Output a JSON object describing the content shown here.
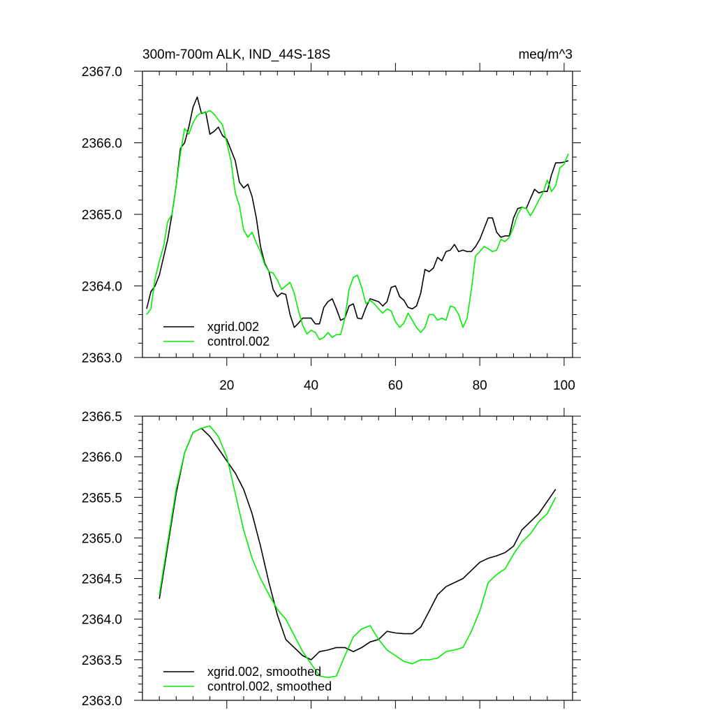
{
  "chart_data": [
    {
      "type": "line",
      "title_left": "300m-700m ALK, IND_44S-18S",
      "title_right": "meq/m^3",
      "xlim": [
        0,
        102
      ],
      "ylim": [
        2363.0,
        2367.0
      ],
      "xticks": [
        20,
        40,
        60,
        80,
        100
      ],
      "xticklabels": [
        "20",
        "40",
        "60",
        "80",
        "100"
      ],
      "yticks": [
        2363.0,
        2364.0,
        2365.0,
        2366.0,
        2367.0
      ],
      "yticklabels": [
        "2363.0",
        "2364.0",
        "2365.0",
        "2366.0",
        "2367.0"
      ],
      "legend_position": "bottom-left",
      "series": [
        {
          "name": "xgrid.002",
          "color": "#000000",
          "x": [
            1,
            2,
            3,
            4,
            5,
            6,
            7,
            8,
            9,
            10,
            11,
            12,
            13,
            14,
            15,
            16,
            17,
            18,
            19,
            20,
            21,
            22,
            23,
            24,
            25,
            26,
            27,
            28,
            29,
            30,
            31,
            32,
            33,
            34,
            35,
            36,
            37,
            38,
            39,
            40,
            41,
            42,
            43,
            44,
            45,
            46,
            47,
            48,
            49,
            50,
            51,
            52,
            53,
            54,
            55,
            56,
            57,
            58,
            59,
            60,
            61,
            62,
            63,
            64,
            65,
            66,
            67,
            68,
            69,
            70,
            71,
            72,
            73,
            74,
            75,
            76,
            77,
            78,
            79,
            80,
            81,
            82,
            83,
            84,
            85,
            86,
            87,
            88,
            89,
            90,
            91,
            92,
            93,
            94,
            95,
            96,
            97,
            98,
            99,
            100,
            101
          ],
          "values": [
            2363.68,
            2363.92,
            2364.0,
            2364.15,
            2364.4,
            2364.65,
            2365.0,
            2365.4,
            2365.92,
            2366.0,
            2366.22,
            2366.5,
            2366.64,
            2366.41,
            2366.43,
            2366.12,
            2366.16,
            2366.22,
            2366.1,
            2366.05,
            2365.9,
            2365.75,
            2365.45,
            2365.37,
            2365.42,
            2365.25,
            2364.95,
            2364.55,
            2364.32,
            2364.2,
            2363.95,
            2363.85,
            2363.9,
            2363.88,
            2363.6,
            2363.42,
            2363.48,
            2363.55,
            2363.55,
            2363.55,
            2363.47,
            2363.47,
            2363.7,
            2363.78,
            2363.82,
            2363.68,
            2363.52,
            2363.55,
            2363.72,
            2363.75,
            2363.55,
            2363.54,
            2363.7,
            2363.82,
            2363.8,
            2363.78,
            2363.72,
            2363.78,
            2363.98,
            2364.0,
            2363.85,
            2363.8,
            2363.7,
            2363.68,
            2363.72,
            2363.9,
            2364.23,
            2364.2,
            2364.25,
            2364.4,
            2364.35,
            2364.48,
            2364.5,
            2364.58,
            2364.48,
            2364.5,
            2364.48,
            2364.48,
            2364.55,
            2364.65,
            2364.8,
            2364.95,
            2364.95,
            2364.75,
            2364.68,
            2364.7,
            2364.7,
            2364.95,
            2365.08,
            2365.1,
            2365.08,
            2365.22,
            2365.35,
            2365.3,
            2365.32,
            2365.32,
            2365.55,
            2365.72,
            2365.72,
            2365.73,
            2365.75
          ]
        },
        {
          "name": "control.002",
          "color": "#00ee00",
          "x": [
            1,
            2,
            3,
            4,
            5,
            6,
            7,
            8,
            9,
            10,
            11,
            12,
            13,
            14,
            15,
            16,
            17,
            18,
            19,
            20,
            21,
            22,
            23,
            24,
            25,
            26,
            27,
            28,
            29,
            30,
            31,
            32,
            33,
            34,
            35,
            36,
            37,
            38,
            39,
            40,
            41,
            42,
            43,
            44,
            45,
            46,
            47,
            48,
            49,
            50,
            51,
            52,
            53,
            54,
            55,
            56,
            57,
            58,
            59,
            60,
            61,
            62,
            63,
            64,
            65,
            66,
            67,
            68,
            69,
            70,
            71,
            72,
            73,
            74,
            75,
            76,
            77,
            78,
            79,
            80,
            81,
            82,
            83,
            84,
            85,
            86,
            87,
            88,
            89,
            90,
            91,
            92,
            93,
            94,
            95,
            96,
            97,
            98,
            99,
            100,
            101
          ],
          "values": [
            2363.6,
            2363.68,
            2364.1,
            2364.35,
            2364.55,
            2364.9,
            2365.0,
            2365.4,
            2365.85,
            2366.2,
            2366.12,
            2366.28,
            2366.38,
            2366.42,
            2366.42,
            2366.45,
            2366.4,
            2366.32,
            2366.25,
            2366.0,
            2365.75,
            2365.3,
            2365.12,
            2364.78,
            2364.68,
            2364.75,
            2364.6,
            2364.48,
            2364.3,
            2364.2,
            2364.18,
            2364.08,
            2363.95,
            2364.0,
            2364.05,
            2363.9,
            2363.65,
            2363.45,
            2363.33,
            2363.38,
            2363.35,
            2363.25,
            2363.28,
            2363.35,
            2363.28,
            2363.32,
            2363.32,
            2363.55,
            2363.95,
            2364.12,
            2364.15,
            2363.98,
            2363.75,
            2363.8,
            2363.75,
            2363.68,
            2363.62,
            2363.68,
            2363.65,
            2363.5,
            2363.42,
            2363.48,
            2363.62,
            2363.52,
            2363.42,
            2363.35,
            2363.42,
            2363.6,
            2363.6,
            2363.52,
            2363.55,
            2363.52,
            2363.72,
            2363.7,
            2363.6,
            2363.42,
            2363.55,
            2363.95,
            2364.42,
            2364.48,
            2364.55,
            2364.52,
            2364.48,
            2364.5,
            2364.65,
            2364.62,
            2364.68,
            2364.82,
            2365.0,
            2365.1,
            2365.08,
            2364.98,
            2365.08,
            2365.2,
            2365.3,
            2365.48,
            2365.32,
            2365.4,
            2365.65,
            2365.7,
            2365.85
          ]
        }
      ]
    },
    {
      "type": "line",
      "xlim": [
        0,
        102
      ],
      "ylim": [
        2363.0,
        2366.5
      ],
      "xticks": [
        20,
        40,
        60,
        80,
        100
      ],
      "yticks": [
        2363.0,
        2363.5,
        2364.0,
        2364.5,
        2365.0,
        2365.5,
        2366.0,
        2366.5
      ],
      "yticklabels": [
        "2363.0",
        "2363.5",
        "2364.0",
        "2364.5",
        "2365.0",
        "2365.5",
        "2366.0",
        "2366.5"
      ],
      "legend_position": "bottom-left",
      "series": [
        {
          "name": "xgrid.002, smoothed",
          "color": "#000000",
          "x": [
            4,
            6,
            8,
            10,
            12,
            14,
            16,
            18,
            20,
            22,
            24,
            26,
            28,
            30,
            32,
            34,
            36,
            38,
            40,
            42,
            44,
            46,
            48,
            50,
            52,
            54,
            56,
            58,
            60,
            62,
            64,
            66,
            68,
            70,
            72,
            74,
            76,
            78,
            80,
            82,
            84,
            86,
            88,
            90,
            92,
            94,
            96,
            98
          ],
          "values": [
            2364.25,
            2364.9,
            2365.55,
            2366.05,
            2366.3,
            2366.35,
            2366.25,
            2366.1,
            2365.95,
            2365.8,
            2365.6,
            2365.3,
            2364.9,
            2364.45,
            2364.05,
            2363.75,
            2363.65,
            2363.55,
            2363.5,
            2363.6,
            2363.62,
            2363.65,
            2363.65,
            2363.6,
            2363.65,
            2363.72,
            2363.75,
            2363.85,
            2363.83,
            2363.82,
            2363.82,
            2363.9,
            2364.1,
            2364.3,
            2364.4,
            2364.45,
            2364.5,
            2364.6,
            2364.7,
            2364.75,
            2364.78,
            2364.82,
            2364.9,
            2365.1,
            2365.2,
            2365.3,
            2365.45,
            2365.6
          ]
        },
        {
          "name": "control.002, smoothed",
          "color": "#00ee00",
          "x": [
            4,
            6,
            8,
            10,
            12,
            14,
            16,
            18,
            20,
            22,
            24,
            26,
            28,
            30,
            32,
            34,
            36,
            38,
            40,
            42,
            44,
            46,
            48,
            50,
            52,
            54,
            56,
            58,
            60,
            62,
            64,
            66,
            68,
            70,
            72,
            74,
            76,
            78,
            80,
            82,
            84,
            86,
            88,
            90,
            92,
            94,
            96,
            98
          ],
          "values": [
            2364.3,
            2364.95,
            2365.6,
            2366.05,
            2366.3,
            2366.35,
            2366.38,
            2366.25,
            2366.0,
            2365.55,
            2365.1,
            2364.75,
            2364.5,
            2364.3,
            2364.12,
            2364.0,
            2363.8,
            2363.6,
            2363.45,
            2363.3,
            2363.28,
            2363.3,
            2363.55,
            2363.78,
            2363.88,
            2363.92,
            2363.75,
            2363.62,
            2363.55,
            2363.48,
            2363.45,
            2363.5,
            2363.5,
            2363.52,
            2363.6,
            2363.62,
            2363.65,
            2363.85,
            2364.1,
            2364.45,
            2364.55,
            2364.62,
            2364.8,
            2364.95,
            2365.05,
            2365.2,
            2365.3,
            2365.5
          ]
        }
      ]
    }
  ]
}
